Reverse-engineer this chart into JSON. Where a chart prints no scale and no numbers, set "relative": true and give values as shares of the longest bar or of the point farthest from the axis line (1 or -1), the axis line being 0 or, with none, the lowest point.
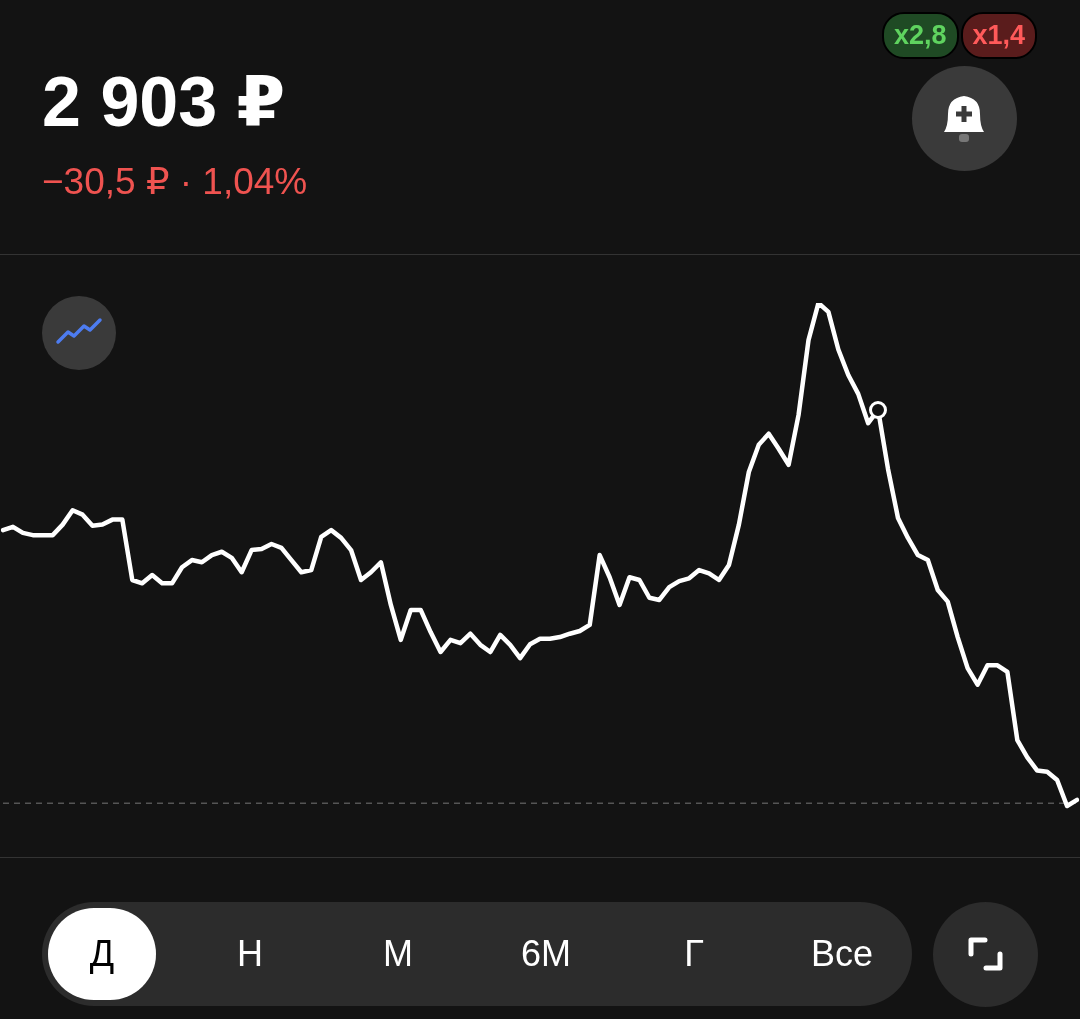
{
  "chart_data": {
    "type": "line",
    "title": "2 903 ₽",
    "subtitle": "−30,5 ₽ · 1,04%",
    "relative": true,
    "legend": false,
    "marker": "none",
    "line_style": "solid",
    "categories": [
      null,
      null,
      null,
      null,
      null,
      null,
      null,
      null,
      null,
      null,
      null,
      null,
      null,
      null,
      null,
      null,
      null,
      null,
      null,
      null,
      null,
      null,
      null,
      null,
      null,
      null,
      null,
      null,
      null,
      null,
      null,
      null,
      null,
      null,
      null,
      null,
      null,
      null,
      null,
      null,
      null,
      null,
      null,
      null,
      null,
      null,
      null,
      null,
      null,
      null,
      null,
      null,
      null,
      null,
      null,
      null,
      null,
      null,
      null,
      null,
      null,
      null,
      null,
      null,
      null,
      null,
      null,
      null,
      null,
      null,
      null,
      null,
      null,
      null,
      null,
      null,
      null,
      null,
      null,
      null,
      null,
      null,
      null,
      null,
      null,
      null,
      null,
      null,
      null,
      null,
      null,
      null,
      null,
      null,
      null,
      null,
      null,
      null,
      null,
      null,
      null,
      null,
      null,
      null,
      null,
      null,
      null,
      null,
      null
    ],
    "series": [
      {
        "color": "#ffffff",
        "values": [
          0.59,
          0.596,
          0.585,
          0.581,
          0.581,
          0.581,
          0.6,
          0.626,
          0.618,
          0.598,
          0.6,
          0.609,
          0.609,
          0.5,
          0.494,
          0.509,
          0.494,
          0.494,
          0.523,
          0.536,
          0.532,
          0.545,
          0.551,
          0.54,
          0.514,
          0.554,
          0.556,
          0.565,
          0.558,
          0.536,
          0.514,
          0.518,
          0.578,
          0.59,
          0.576,
          0.554,
          0.5,
          0.514,
          0.532,
          0.455,
          0.392,
          0.446,
          0.446,
          0.406,
          0.37,
          0.392,
          0.386,
          0.403,
          0.383,
          0.37,
          0.401,
          0.383,
          0.359,
          0.384,
          0.394,
          0.394,
          0.397,
          0.403,
          0.408,
          0.419,
          0.545,
          0.505,
          0.455,
          0.505,
          0.5,
          0.468,
          0.464,
          0.487,
          0.498,
          0.503,
          0.518,
          0.512,
          0.5,
          0.527,
          0.6,
          0.695,
          0.744,
          0.764,
          0.737,
          0.708,
          0.798,
          0.933,
          1,
          0.984,
          0.916,
          0.87,
          0.836,
          0.783,
          0.807,
          0.7,
          0.612,
          0.576,
          0.545,
          0.536,
          0.482,
          0.461,
          0.397,
          0.341,
          0.311,
          0.346,
          0.346,
          0.334,
          0.211,
          0.18,
          0.156,
          0.154,
          0.139,
          0.092,
          0.103
        ]
      }
    ],
    "ref_lines": [
      {
        "axis": "y",
        "value": 0.097,
        "color": "#555555",
        "line_style": "dashed"
      }
    ],
    "annotations": [
      "x2,8",
      "x1,4",
      "Д",
      "Н",
      "М",
      "6М",
      "Г",
      "Все"
    ]
  }
}
